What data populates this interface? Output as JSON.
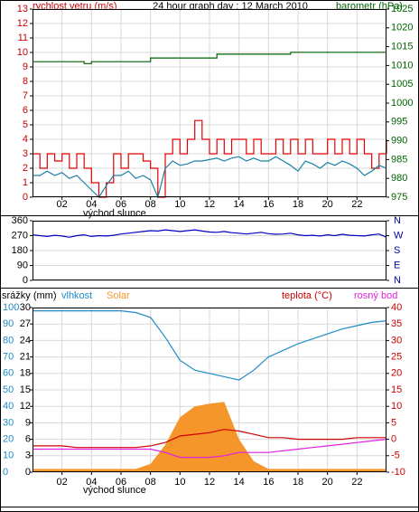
{
  "chart_data": [
    {
      "type": "line",
      "title": "24 hour graph day : 12 March 2010",
      "ylabel": "rychlost vetru (m/s)",
      "y2label": "barometr (hPa)",
      "annotation": "východ slunce",
      "x": [
        0,
        0.5,
        1,
        1.5,
        2,
        2.5,
        3,
        3.5,
        4,
        4.5,
        5,
        5.5,
        6,
        6.5,
        7,
        7.5,
        8,
        8.5,
        9,
        9.5,
        10,
        10.5,
        11,
        11.5,
        12,
        12.5,
        13,
        13.5,
        14,
        14.5,
        15,
        15.5,
        16,
        16.5,
        17,
        17.5,
        18,
        18.5,
        19,
        19.5,
        20,
        20.5,
        21,
        21.5,
        22,
        22.5,
        23,
        23.5,
        24
      ],
      "xlim": [
        0,
        24
      ],
      "xticks": [
        {
          "value": 2,
          "label": "02"
        },
        {
          "value": 4,
          "label": "04"
        },
        {
          "value": 6,
          "label": "06"
        },
        {
          "value": 8,
          "label": "08"
        },
        10,
        12,
        14,
        16,
        18,
        20,
        22
      ],
      "ylim": [
        0,
        13
      ],
      "yticks": [
        0,
        1,
        2,
        3,
        4,
        5,
        6,
        7,
        8,
        9,
        10,
        11,
        12,
        13
      ],
      "ycolor": "#cc0000",
      "y2lim": [
        975,
        1025
      ],
      "y2ticks": [
        975,
        980,
        985,
        990,
        995,
        1000,
        1005,
        1010,
        1015,
        1020,
        1025
      ],
      "y2color": "#006400",
      "grid": true,
      "series": [
        {
          "color": "#e00000",
          "step": true,
          "values": [
            3,
            2,
            3,
            2.5,
            3,
            2,
            3,
            2,
            1,
            0,
            1,
            3,
            2,
            3,
            3,
            2.5,
            2,
            0,
            3,
            4,
            3,
            4,
            5.3,
            4,
            3,
            4,
            3,
            4,
            4,
            3,
            4,
            3,
            3,
            4,
            3,
            4,
            3,
            4,
            3,
            3,
            4,
            3,
            4,
            3,
            4,
            3,
            2,
            3,
            4
          ]
        },
        {
          "color": "#1a80a8",
          "values": [
            1.5,
            1.5,
            1.8,
            1.5,
            1.7,
            1.3,
            1.5,
            1,
            0.5,
            0,
            0.8,
            1.5,
            1.5,
            1.8,
            1.3,
            1.5,
            1.2,
            0,
            2,
            2.5,
            2.2,
            2.3,
            2.5,
            2.5,
            2.6,
            2.7,
            2.5,
            2.7,
            2.8,
            2.5,
            2.7,
            2.5,
            2.5,
            2.8,
            2.5,
            2.2,
            1.8,
            2.5,
            2.3,
            2,
            2.4,
            2.2,
            2.5,
            2.3,
            2,
            1.5,
            1.8,
            2.2,
            2
          ]
        },
        {
          "color": "#006400",
          "axis": "y2",
          "step": true,
          "values": [
            1011,
            1011,
            1011,
            1011,
            1011,
            1011,
            1011,
            1010.5,
            1011,
            1011,
            1011,
            1011,
            1011,
            1011,
            1011,
            1011,
            1012,
            1012,
            1012,
            1012,
            1012,
            1012,
            1012,
            1012,
            1012,
            1013,
            1013,
            1013,
            1013,
            1013,
            1013,
            1013,
            1013,
            1013,
            1013,
            1013.5,
            1013.5,
            1013.5,
            1013.5,
            1013.5,
            1013.5,
            1013.5,
            1013.5,
            1013.5,
            1013.5,
            1013.5,
            1013.5,
            1013.5,
            1013.5
          ]
        }
      ]
    },
    {
      "type": "line",
      "x": [
        0,
        0.5,
        1,
        1.5,
        2,
        2.5,
        3,
        3.5,
        4,
        4.5,
        5,
        5.5,
        6,
        6.5,
        7,
        7.5,
        8,
        8.5,
        9,
        9.5,
        10,
        10.5,
        11,
        11.5,
        12,
        12.5,
        13,
        13.5,
        14,
        14.5,
        15,
        15.5,
        16,
        16.5,
        17,
        17.5,
        18,
        18.5,
        19,
        19.5,
        20,
        20.5,
        21,
        21.5,
        22,
        22.5,
        23,
        23.5,
        24
      ],
      "xlim": [
        0,
        24
      ],
      "ylim": [
        0,
        360
      ],
      "yticks": [
        0,
        90,
        180,
        270,
        360
      ],
      "ycolor": "#000000",
      "y2lim": [
        0,
        360
      ],
      "y2ticks": [
        {
          "value": 360,
          "label": "N"
        },
        {
          "value": 270,
          "label": "W"
        },
        {
          "value": 180,
          "label": "S"
        },
        {
          "value": 90,
          "label": "E"
        },
        {
          "value": 0,
          "label": "N"
        }
      ],
      "y2color": "#0000a0",
      "grid": true,
      "series": [
        {
          "color": "#0000c0",
          "values": [
            275,
            270,
            265,
            272,
            268,
            260,
            270,
            275,
            265,
            270,
            268,
            272,
            280,
            285,
            290,
            295,
            300,
            298,
            305,
            300,
            295,
            300,
            305,
            298,
            292,
            290,
            295,
            288,
            285,
            280,
            285,
            290,
            282,
            278,
            280,
            285,
            275,
            270,
            272,
            268,
            275,
            270,
            278,
            272,
            270,
            268,
            275,
            280,
            260
          ]
        }
      ]
    },
    {
      "type": "line",
      "annotation": "východ slunce",
      "y3label": "srážky (mm)",
      "x": [
        0,
        1,
        2,
        3,
        4,
        5,
        6,
        7,
        8,
        9,
        10,
        11,
        12,
        13,
        14,
        15,
        16,
        17,
        18,
        19,
        20,
        21,
        22,
        23,
        24
      ],
      "xlim": [
        0,
        24
      ],
      "xticks": [
        {
          "value": 2,
          "label": "02"
        },
        {
          "value": 4,
          "label": "04"
        },
        {
          "value": 6,
          "label": "06"
        },
        {
          "value": 8,
          "label": "08"
        },
        10,
        12,
        14,
        16,
        18,
        20,
        22
      ],
      "ylim": [
        0,
        100
      ],
      "yticks": [
        0,
        10,
        20,
        30,
        40,
        50,
        60,
        70,
        80,
        90,
        100
      ],
      "ycolor": "#1f8ac8",
      "y2lim": [
        -10,
        40
      ],
      "y2ticks": [
        -10,
        -5,
        0,
        5,
        10,
        15,
        20,
        25,
        30,
        35,
        40
      ],
      "y2color": "#cc0000",
      "y3lim": [
        0,
        30
      ],
      "y3ticks": [
        0,
        3,
        6,
        9,
        12,
        15,
        18,
        21,
        24,
        27,
        30
      ],
      "y3color": "#000000",
      "grid": true,
      "series": [
        {
          "name": "Solar",
          "color": "#f5962a",
          "axis": "y3",
          "area": true,
          "values": [
            0.6,
            0.6,
            0.6,
            0.6,
            0.6,
            0.6,
            0.6,
            0.6,
            1.5,
            5,
            10,
            12,
            12.5,
            12.8,
            6,
            2,
            0.6,
            0.6,
            0.6,
            0.6,
            0.6,
            0.6,
            0.6,
            0.6,
            0.6
          ]
        },
        {
          "name": "vlhkost",
          "color": "#1f8ac8",
          "values": [
            98,
            98,
            98,
            98,
            98,
            98,
            98,
            97,
            94,
            82,
            68,
            62,
            60,
            58,
            56,
            62,
            70,
            74,
            78,
            81,
            84,
            87,
            89,
            91,
            92
          ]
        },
        {
          "name": "teplota (°C)",
          "color": "#d00000",
          "axis": "y2",
          "values": [
            -2,
            -2,
            -2,
            -2.5,
            -2.5,
            -2.5,
            -2.5,
            -2.5,
            -2,
            -1,
            1,
            1.5,
            2,
            3,
            2.5,
            1.5,
            0.5,
            0.5,
            0,
            0,
            0,
            0,
            0.5,
            0.5,
            0.5
          ]
        },
        {
          "name": "rosný bod",
          "color": "#e020e0",
          "axis": "y2",
          "values": [
            -3,
            -3,
            -3,
            -3,
            -3,
            -3,
            -3,
            -3,
            -3,
            -4,
            -5.5,
            -5.5,
            -5.5,
            -5,
            -4,
            -4,
            -4,
            -3.5,
            -3,
            -2.5,
            -2,
            -1.5,
            -1,
            -0.5,
            0
          ]
        }
      ]
    }
  ]
}
